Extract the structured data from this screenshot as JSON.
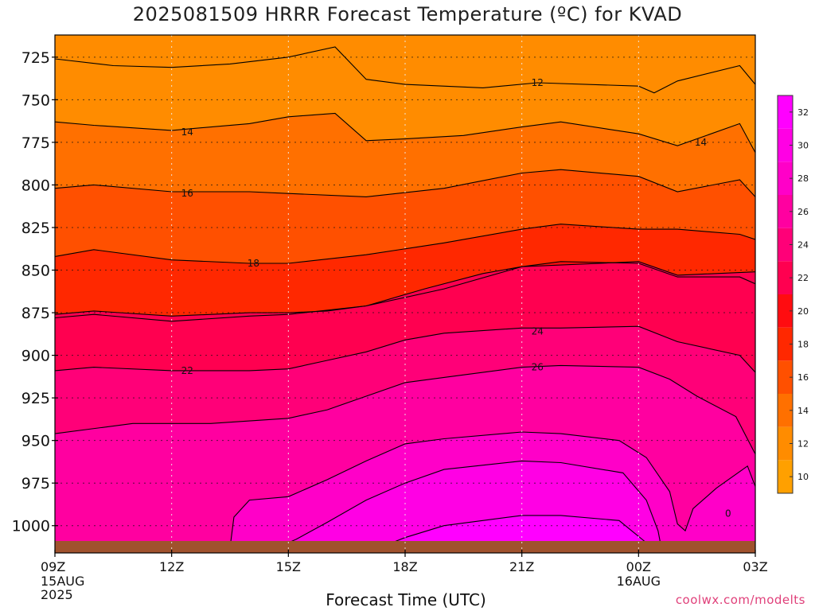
{
  "chart_data": {
    "type": "heatmap",
    "title": "2025081509 HRRR Forecast Temperature (ºC) for KVAD",
    "xlabel": "Forecast Time (UTC)",
    "ylabel": "",
    "credit": "coolwx.com/modelts",
    "x_ticks": [
      {
        "label": "09Z",
        "sub": [
          "15AUG",
          "2025"
        ],
        "hour": 0
      },
      {
        "label": "12Z",
        "sub": [],
        "hour": 3
      },
      {
        "label": "15Z",
        "sub": [],
        "hour": 6
      },
      {
        "label": "18Z",
        "sub": [],
        "hour": 9
      },
      {
        "label": "21Z",
        "sub": [],
        "hour": 12
      },
      {
        "label": "00Z",
        "sub": [
          "16AUG"
        ],
        "hour": 15
      },
      {
        "label": "03Z",
        "sub": [],
        "hour": 18
      }
    ],
    "x_range_hours": [
      0,
      18
    ],
    "y_ticks": [
      725,
      750,
      775,
      800,
      825,
      850,
      875,
      900,
      925,
      950,
      975,
      1000
    ],
    "y_range_hpa": [
      712,
      1016
    ],
    "y_axis": "pressure (hPa), increasing downward",
    "colorbar_ticks": [
      10,
      12,
      14,
      16,
      18,
      20,
      22,
      24,
      26,
      28,
      30,
      32
    ],
    "colorbar_range": [
      9,
      33
    ],
    "color_levels": [
      {
        "min": 9,
        "max": 11,
        "color": "#ffa000"
      },
      {
        "min": 11,
        "max": 13,
        "color": "#ff8c00"
      },
      {
        "min": 13,
        "max": 15,
        "color": "#ff7000"
      },
      {
        "min": 15,
        "max": 17,
        "color": "#ff5000"
      },
      {
        "min": 17,
        "max": 19,
        "color": "#ff2800"
      },
      {
        "min": 19,
        "max": 21,
        "color": "#ff0c10"
      },
      {
        "min": 21,
        "max": 23,
        "color": "#ff0050"
      },
      {
        "min": 23,
        "max": 25,
        "color": "#ff0078"
      },
      {
        "min": 25,
        "max": 27,
        "color": "#ff00a0"
      },
      {
        "min": 27,
        "max": 29,
        "color": "#ff00c8"
      },
      {
        "min": 29,
        "max": 31,
        "color": "#ff00e4"
      },
      {
        "min": 31,
        "max": 33,
        "color": "#ff00ff"
      }
    ],
    "ground_color": "#a0522d",
    "contour_labels": [
      {
        "text": "12",
        "hour": 12.4,
        "hpa": 740
      },
      {
        "text": "14",
        "hour": 3.4,
        "hpa": 769
      },
      {
        "text": "14",
        "hour": 16.6,
        "hpa": 775
      },
      {
        "text": "16",
        "hour": 3.4,
        "hpa": 805
      },
      {
        "text": "18",
        "hour": 5.1,
        "hpa": 846
      },
      {
        "text": "22",
        "hour": 3.4,
        "hpa": 909
      },
      {
        "text": "24",
        "hour": 12.4,
        "hpa": 886
      },
      {
        "text": "26",
        "hour": 12.4,
        "hpa": 907
      },
      {
        "text": "0",
        "hour": 17.3,
        "hpa": 993
      }
    ],
    "isotherms": [
      {
        "value": 12,
        "points": [
          [
            0,
            726
          ],
          [
            1.5,
            730
          ],
          [
            3,
            731
          ],
          [
            4.5,
            729
          ],
          [
            6,
            725
          ],
          [
            7.2,
            719
          ],
          [
            8,
            738
          ],
          [
            9,
            741
          ],
          [
            11,
            743
          ],
          [
            12.4,
            740
          ],
          [
            15,
            742
          ],
          [
            15.4,
            746
          ],
          [
            16,
            739
          ],
          [
            17.6,
            730
          ],
          [
            18,
            741
          ]
        ]
      },
      {
        "value": 14,
        "points": [
          [
            0,
            763
          ],
          [
            1,
            765
          ],
          [
            3,
            768
          ],
          [
            5,
            764
          ],
          [
            6,
            760
          ],
          [
            7.2,
            758
          ],
          [
            8,
            774
          ],
          [
            9,
            773
          ],
          [
            10.5,
            771
          ],
          [
            12,
            766
          ],
          [
            13,
            763
          ],
          [
            15,
            770
          ],
          [
            16,
            777
          ],
          [
            17.6,
            764
          ],
          [
            18,
            781
          ]
        ]
      },
      {
        "value": 16,
        "points": [
          [
            0,
            802
          ],
          [
            1,
            800
          ],
          [
            3,
            804
          ],
          [
            5,
            804
          ],
          [
            6,
            805
          ],
          [
            8,
            807
          ],
          [
            10,
            802
          ],
          [
            12,
            793
          ],
          [
            13,
            791
          ],
          [
            15,
            795
          ],
          [
            16,
            804
          ],
          [
            17.6,
            797
          ],
          [
            18,
            807
          ]
        ]
      },
      {
        "value": 18,
        "points": [
          [
            0,
            842
          ],
          [
            1,
            838
          ],
          [
            3,
            844
          ],
          [
            5,
            846
          ],
          [
            6,
            846
          ],
          [
            8,
            841
          ],
          [
            10,
            834
          ],
          [
            12,
            826
          ],
          [
            13,
            823
          ],
          [
            15,
            826
          ],
          [
            16,
            826
          ],
          [
            17.6,
            829
          ],
          [
            18,
            832
          ]
        ]
      },
      {
        "value": 20,
        "points": [
          [
            0,
            878
          ],
          [
            1,
            876
          ],
          [
            3,
            880
          ],
          [
            5,
            877
          ],
          [
            6,
            876
          ],
          [
            8,
            871
          ],
          [
            10,
            861
          ],
          [
            12,
            848
          ],
          [
            13,
            845
          ],
          [
            15,
            846
          ],
          [
            16,
            854
          ],
          [
            17.6,
            854
          ],
          [
            18,
            858
          ]
        ]
      },
      {
        "value": 22,
        "points": [
          [
            0,
            876
          ],
          [
            1,
            874
          ],
          [
            3,
            877
          ],
          [
            5,
            875
          ],
          [
            6,
            875
          ],
          [
            7,
            874
          ],
          [
            8,
            871
          ],
          [
            9.5,
            861
          ],
          [
            11,
            852
          ],
          [
            12,
            848
          ],
          [
            13,
            847
          ],
          [
            15,
            845
          ],
          [
            16,
            853
          ],
          [
            18,
            851
          ]
        ]
      },
      {
        "value": 24,
        "points": [
          [
            0,
            909
          ],
          [
            1,
            907
          ],
          [
            3,
            909
          ],
          [
            5,
            909
          ],
          [
            6,
            908
          ],
          [
            7,
            903
          ],
          [
            8,
            898
          ],
          [
            9,
            891
          ],
          [
            10,
            887
          ],
          [
            12,
            884
          ],
          [
            13,
            884
          ],
          [
            15,
            883
          ],
          [
            16,
            892
          ],
          [
            17.6,
            900
          ],
          [
            18,
            910
          ]
        ]
      },
      {
        "value": 26,
        "points": [
          [
            0,
            946
          ],
          [
            2,
            940
          ],
          [
            4,
            940
          ],
          [
            6,
            937
          ],
          [
            7,
            932
          ],
          [
            8,
            924
          ],
          [
            9,
            916
          ],
          [
            10,
            913
          ],
          [
            12,
            907
          ],
          [
            13,
            906
          ],
          [
            15,
            907
          ],
          [
            15.8,
            914
          ],
          [
            16.5,
            924
          ],
          [
            17.5,
            936
          ],
          [
            18,
            958
          ]
        ]
      },
      {
        "value": 28,
        "points": [
          [
            4.5,
            1013
          ],
          [
            4.6,
            995
          ],
          [
            5,
            985
          ],
          [
            6,
            983
          ],
          [
            7,
            973
          ],
          [
            8,
            962
          ],
          [
            9,
            952
          ],
          [
            10,
            949
          ],
          [
            12,
            945
          ],
          [
            13,
            946
          ],
          [
            14.5,
            950
          ],
          [
            15.2,
            960
          ],
          [
            15.8,
            980
          ],
          [
            16,
            999
          ],
          [
            16.2,
            1003
          ],
          [
            16.4,
            990
          ],
          [
            17,
            978
          ],
          [
            17.8,
            965
          ],
          [
            18,
            977
          ]
        ]
      },
      {
        "value": 30,
        "points": [
          [
            5.5,
            1015
          ],
          [
            6.2,
            1008
          ],
          [
            7,
            998
          ],
          [
            8,
            985
          ],
          [
            9,
            975
          ],
          [
            10,
            967
          ],
          [
            12,
            962
          ],
          [
            13,
            963
          ],
          [
            14.6,
            969
          ],
          [
            15.2,
            985
          ],
          [
            15.5,
            1003
          ],
          [
            15.6,
            1015
          ]
        ]
      },
      {
        "value": 32,
        "points": [
          [
            8,
            1016
          ],
          [
            9,
            1007
          ],
          [
            10,
            1000
          ],
          [
            12,
            994
          ],
          [
            13,
            994
          ],
          [
            14.5,
            997
          ],
          [
            15.2,
            1010
          ],
          [
            15.2,
            1016
          ]
        ]
      }
    ]
  }
}
